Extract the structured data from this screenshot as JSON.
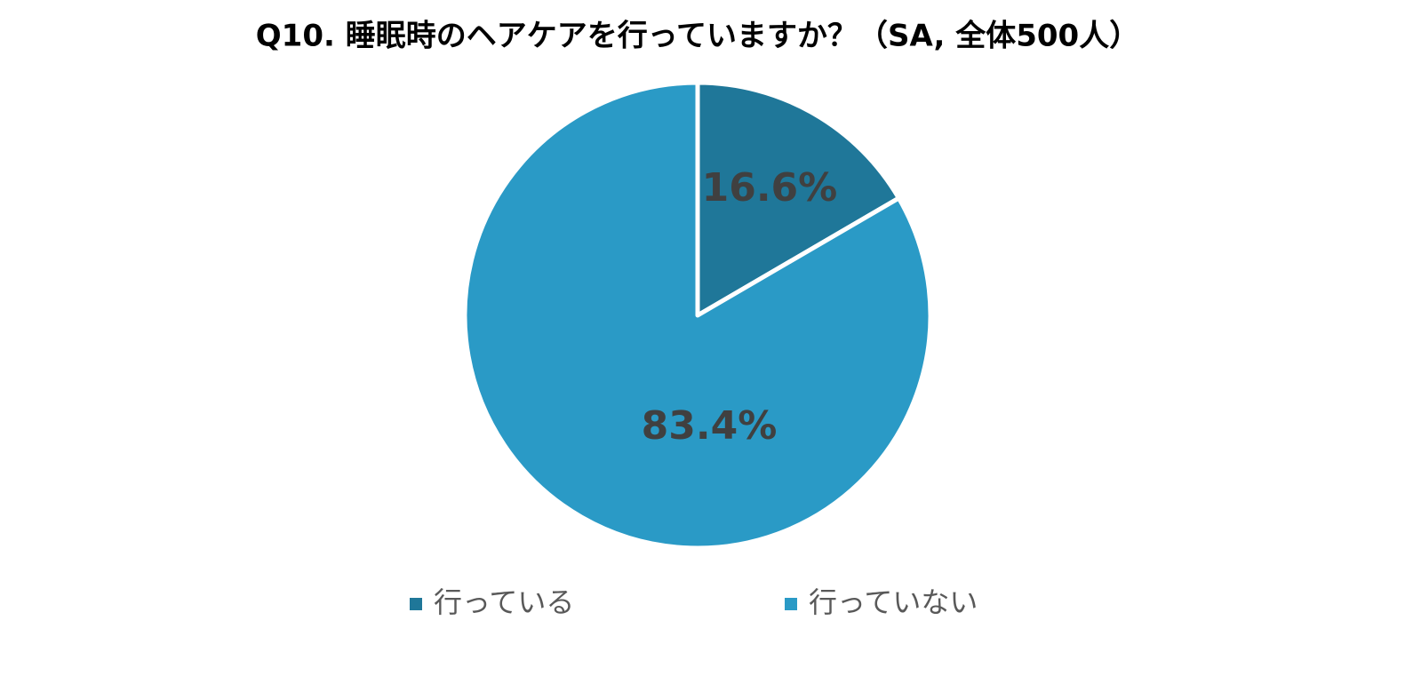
{
  "chart_data": {
    "type": "pie",
    "title": "Q10. 睡眠時のヘアケアを行っていますか？（SA, 全体500人）",
    "categories": [
      "行っている",
      "行っていない"
    ],
    "values": [
      16.6,
      83.4
    ],
    "value_labels": [
      "16.6%",
      "83.4%"
    ],
    "colors": [
      "#1f7799",
      "#2a9ac6"
    ],
    "legend": "bottom"
  }
}
